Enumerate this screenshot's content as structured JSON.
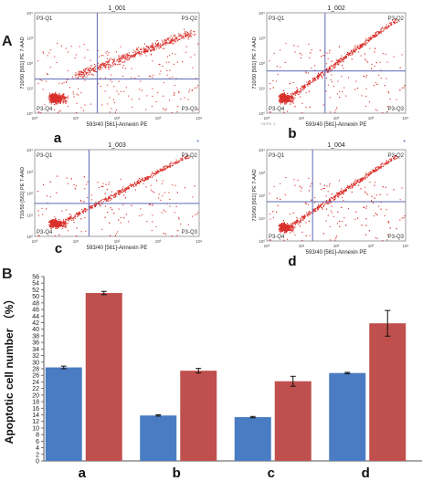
{
  "panel_labels": {
    "A": "A",
    "B": "B"
  },
  "flow": {
    "x_axis_label": "593/40 [561]-Annexin PE",
    "y_axis_label": "710/50 [561] PE 7-AAD",
    "tick_labels": [
      "10⁰",
      "10¹",
      "10²",
      "10³",
      "10⁴"
    ],
    "quadrants": {
      "q1": "P3-Q1",
      "q2": "P3-Q2",
      "q3": "P3-Q3",
      "q4": "P3-Q4"
    },
    "small_note": "HDPE, 1",
    "plots": [
      {
        "sample": "1_001",
        "label": "a",
        "pop_shape": "broad"
      },
      {
        "sample": "1_002",
        "label": "b",
        "pop_shape": "diagonal"
      },
      {
        "sample": "1_003",
        "label": "c",
        "pop_shape": "diagonal"
      },
      {
        "sample": "1_004",
        "label": "d",
        "pop_shape": "diagonal"
      }
    ],
    "dot_color": "#d9302b",
    "gate_color": "#5b67b5"
  },
  "chart_data": {
    "type": "bar",
    "title": "",
    "xlabel": "",
    "ylabel": "Apoptotic cell number （%）",
    "categories": [
      "a",
      "b",
      "c",
      "d"
    ],
    "ylim": [
      0,
      56
    ],
    "ytick_step": 2,
    "grid": false,
    "legend": "none",
    "series": [
      {
        "color": "#4a7cc3",
        "values": [
          28.4,
          13.8,
          13.3,
          26.7
        ],
        "errors": [
          0.4,
          0.2,
          0.2,
          0.2
        ]
      },
      {
        "color": "#c0504d",
        "values": [
          51.0,
          27.4,
          24.2,
          41.8
        ],
        "errors": [
          0.5,
          0.7,
          1.5,
          3.9
        ]
      }
    ]
  }
}
